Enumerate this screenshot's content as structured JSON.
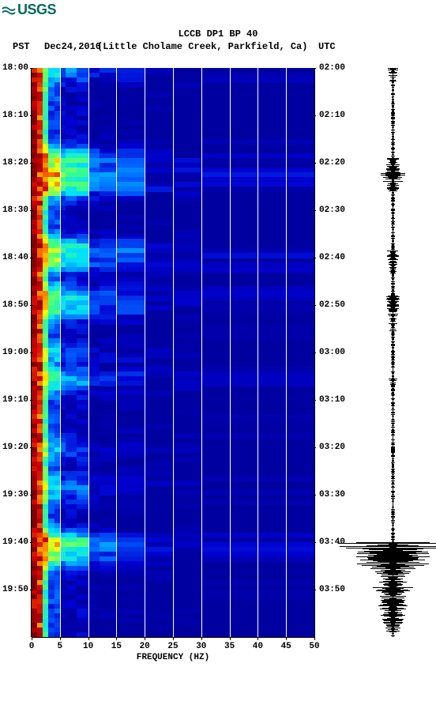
{
  "logo": {
    "text": "USGS",
    "color": "#00695c"
  },
  "title": "LCCB DP1 BP 40",
  "header": {
    "pst_label": "PST",
    "date": "Dec24,2016",
    "location": "(Little Cholame Creek, Parkfield, Ca)",
    "utc_label": "UTC"
  },
  "spectrogram": {
    "type": "spectrogram",
    "xlabel": "FREQUENCY (HZ)",
    "xlim": [
      0,
      50
    ],
    "xticks": [
      0,
      5,
      10,
      15,
      20,
      25,
      30,
      35,
      40,
      45,
      50
    ],
    "grid_x": [
      5,
      10,
      15,
      20,
      25,
      30,
      35,
      40,
      45
    ],
    "left_axis": {
      "label": "PST",
      "ticks": [
        "18:00",
        "18:10",
        "18:20",
        "18:30",
        "18:40",
        "18:50",
        "19:00",
        "19:10",
        "19:20",
        "19:30",
        "19:40",
        "19:50"
      ]
    },
    "right_axis": {
      "label": "UTC",
      "ticks": [
        "02:00",
        "02:10",
        "02:20",
        "02:30",
        "02:40",
        "02:50",
        "03:00",
        "03:10",
        "03:20",
        "03:30",
        "03:40",
        "03:50"
      ]
    },
    "time_rows": 120,
    "freq_bins": [
      0,
      1,
      2,
      3,
      4,
      5,
      6,
      8,
      10,
      12,
      15,
      20,
      25,
      30,
      50
    ],
    "palette": {
      "darkblue": "#00008b",
      "blue": "#0000d0",
      "ltblue": "#0060ff",
      "cyan": "#00e0ff",
      "green": "#40ff80",
      "yellow": "#ffff00",
      "orange": "#ff8000",
      "red": "#d00000",
      "darkred": "#800000"
    },
    "events": [
      {
        "t": 0,
        "intensity": 0.4
      },
      {
        "t": 19,
        "intensity": 0.8
      },
      {
        "t": 22,
        "intensity": 0.95
      },
      {
        "t": 24,
        "intensity": 0.9
      },
      {
        "t": 38,
        "intensity": 0.75
      },
      {
        "t": 40,
        "intensity": 0.7
      },
      {
        "t": 48,
        "intensity": 0.65
      },
      {
        "t": 50,
        "intensity": 0.6
      },
      {
        "t": 60,
        "intensity": 0.3
      },
      {
        "t": 65,
        "intensity": 0.5
      },
      {
        "t": 80,
        "intensity": 0.3
      },
      {
        "t": 88,
        "intensity": 0.35
      },
      {
        "t": 100,
        "intensity": 0.9
      },
      {
        "t": 102,
        "intensity": 0.7
      }
    ],
    "background_color": "#0000a0",
    "grid_color": "#ffffff"
  },
  "seismogram": {
    "color": "#000000",
    "baseline_amp": 0.03,
    "events": [
      {
        "t": 0,
        "amp": 0.08,
        "dur": 4
      },
      {
        "t": 19,
        "amp": 0.12,
        "dur": 6
      },
      {
        "t": 22,
        "amp": 0.18,
        "dur": 4
      },
      {
        "t": 38,
        "amp": 0.1,
        "dur": 6
      },
      {
        "t": 48,
        "amp": 0.1,
        "dur": 8
      },
      {
        "t": 65,
        "amp": 0.06,
        "dur": 4
      },
      {
        "t": 100,
        "amp": 0.95,
        "dur": 3
      },
      {
        "t": 103,
        "amp": 0.55,
        "dur": 8
      },
      {
        "t": 111,
        "amp": 0.25,
        "dur": 8
      }
    ]
  }
}
